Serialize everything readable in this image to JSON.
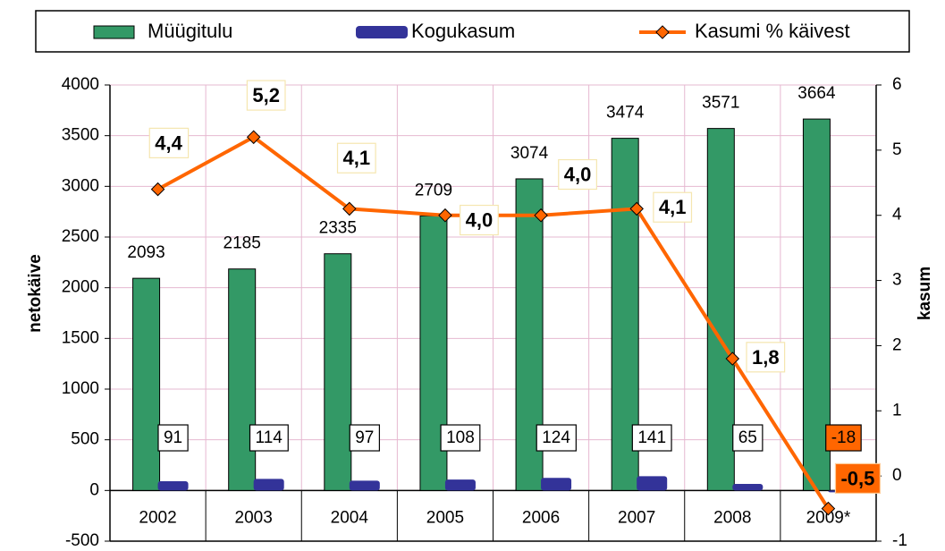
{
  "chart_data": {
    "type": "bar",
    "categories": [
      "2002",
      "2003",
      "2004",
      "2005",
      "2006",
      "2007",
      "2008",
      "2009*"
    ],
    "series": [
      {
        "name": "Müügitulu",
        "type": "bar",
        "color": "#339966",
        "values": [
          2093,
          2185,
          2335,
          2709,
          3074,
          3474,
          3571,
          3664
        ]
      },
      {
        "name": "Kogukasum",
        "type": "bar",
        "color": "#333399",
        "values": [
          91,
          114,
          97,
          108,
          124,
          141,
          65,
          -18
        ]
      },
      {
        "name": "Kasumi % käivest",
        "type": "line",
        "axis": "y2",
        "color": "#ff6600",
        "values": [
          4.4,
          5.2,
          4.1,
          4.0,
          4.0,
          4.1,
          1.8,
          -0.5
        ],
        "value_labels": [
          "4,4",
          "5,2",
          "4,1",
          "4,0",
          "4,0",
          "4,1",
          "1,8",
          "-0,5"
        ]
      }
    ],
    "ylabel": "netokäive",
    "y2label": "kasum",
    "ylim": [
      -500,
      4000
    ],
    "yticks": [
      -500,
      0,
      500,
      1000,
      1500,
      2000,
      2500,
      3000,
      3500,
      4000
    ],
    "y2lim": [
      -1,
      6
    ],
    "y2ticks": [
      -1,
      0,
      1,
      2,
      3,
      4,
      5,
      6
    ],
    "grid": true
  }
}
